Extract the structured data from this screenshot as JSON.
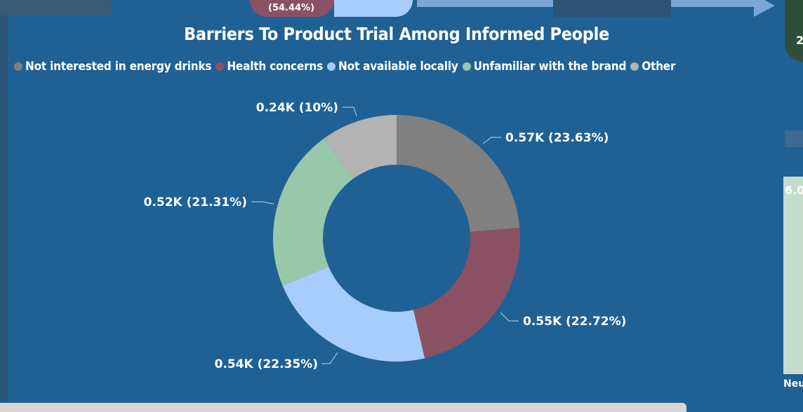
{
  "visual": {
    "title": "Barriers To Product Trial Among Informed People"
  },
  "chart_data": {
    "type": "pie",
    "subtype": "donut",
    "title": "Barriers To Product Trial Among Informed People",
    "legend_position": "top-left",
    "categories": [
      "Not interested in energy drinks",
      "Health concerns",
      "Not available locally",
      "Unfamiliar with the brand",
      "Other"
    ],
    "values": [
      0.57,
      0.55,
      0.54,
      0.52,
      0.24
    ],
    "unit": "K",
    "percentages": [
      23.63,
      22.72,
      22.35,
      21.31,
      10
    ],
    "data_labels": [
      "0.57K (23.63%)",
      "0.55K (22.72%)",
      "0.54K (22.35%)",
      "0.52K (21.31%)",
      "0.24K (10%)"
    ],
    "colors": [
      "#808080",
      "#8a5165",
      "#a7cdfd",
      "#98c8a9",
      "#b3b3b3"
    ]
  },
  "background_fragments": {
    "top_left_label": "(54.44%)",
    "right_edge_value": "6.0",
    "right_edge_label": "Neu",
    "right_top_value": "2"
  },
  "colors": {
    "background": "#1f6195",
    "text": "#ffffff"
  }
}
